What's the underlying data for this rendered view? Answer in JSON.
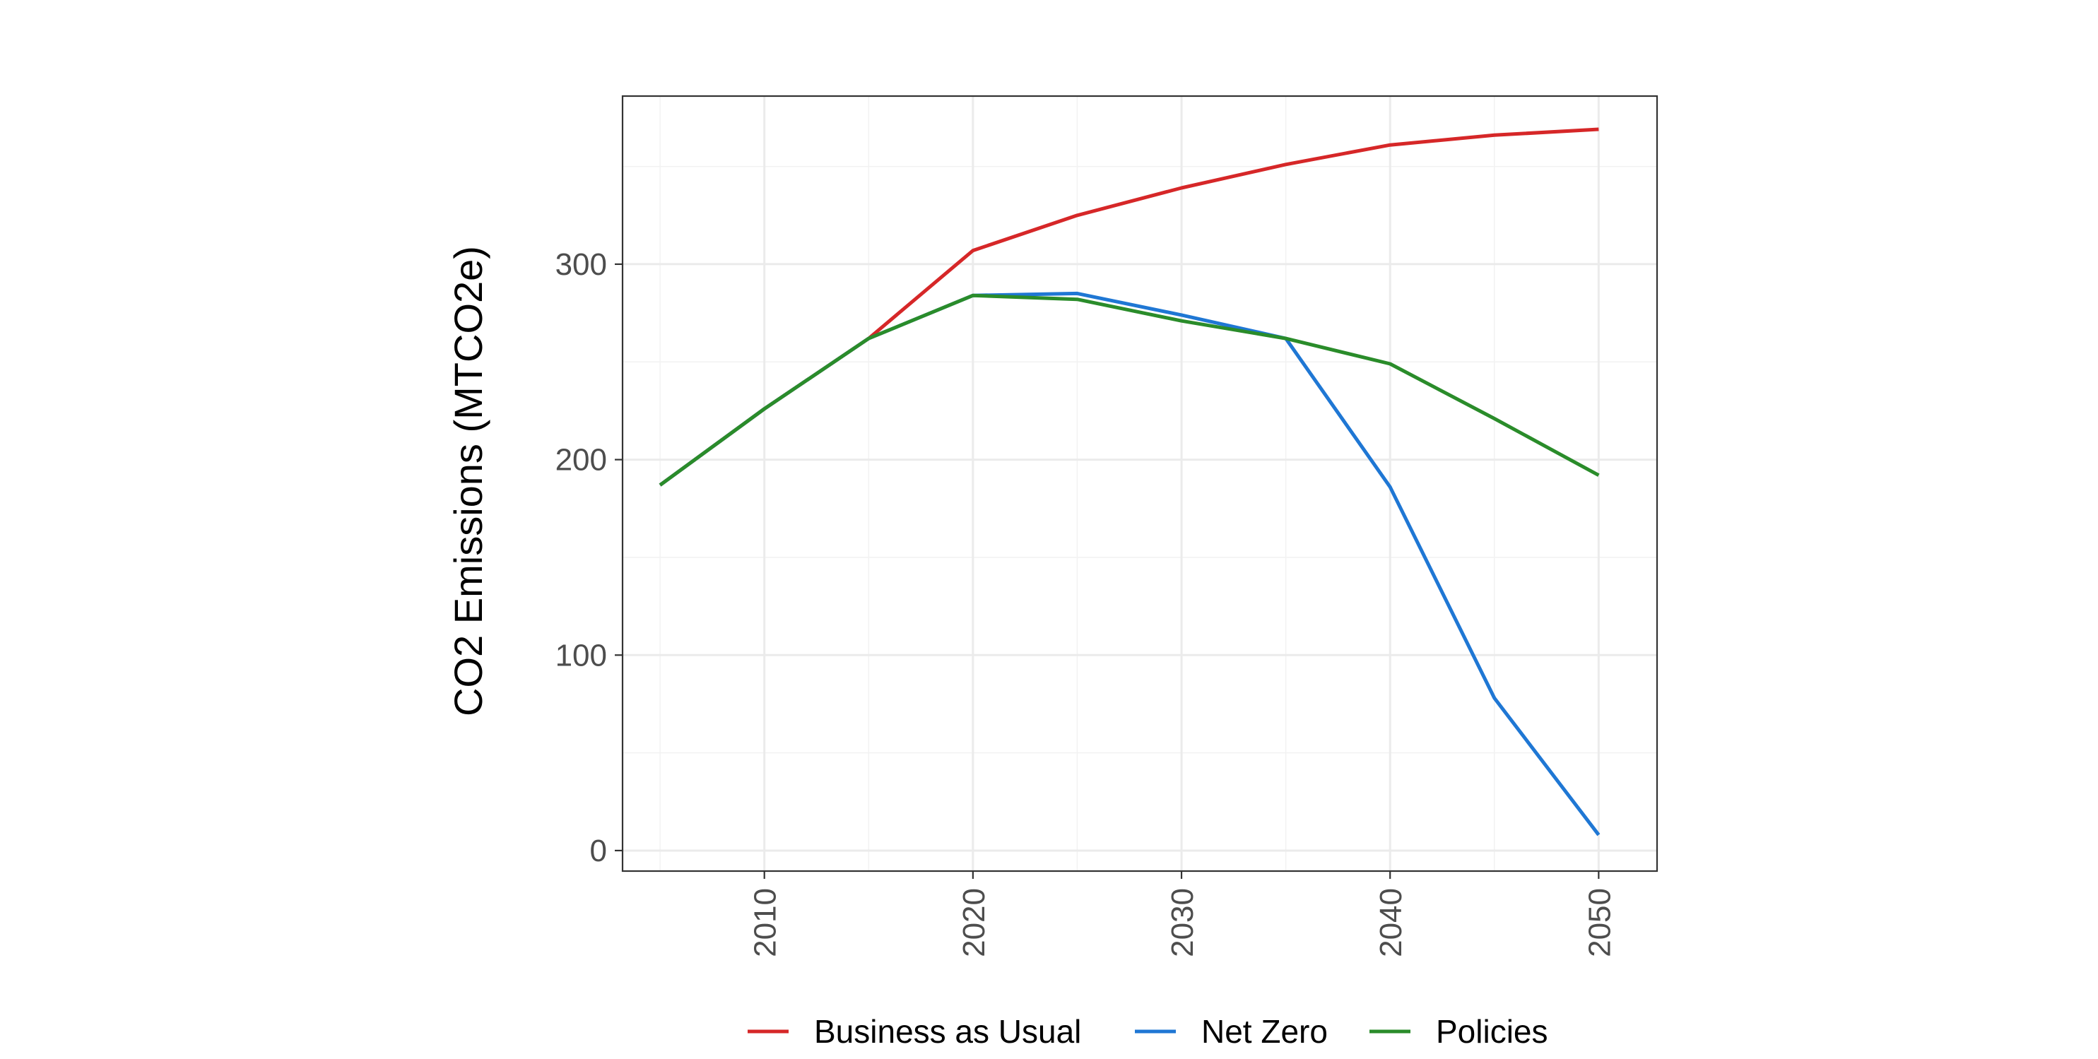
{
  "chart_data": {
    "type": "line",
    "title": "",
    "xlabel": "",
    "ylabel": "CO2 Emissions (MTCO2e)",
    "xlim": [
      2003.2,
      2052.8
    ],
    "ylim": [
      -10.5,
      386
    ],
    "x_ticks": [
      2010,
      2020,
      2030,
      2040,
      2050
    ],
    "y_ticks": [
      0,
      100,
      200,
      300
    ],
    "grid": true,
    "legend_position": "bottom",
    "x": [
      2005,
      2010,
      2015,
      2020,
      2025,
      2030,
      2035,
      2040,
      2045,
      2050
    ],
    "series": [
      {
        "name": "Business as Usual",
        "color": "#d62728",
        "values": [
          187,
          226,
          262,
          307,
          325,
          339,
          351,
          361,
          366,
          369
        ]
      },
      {
        "name": "Net Zero",
        "color": "#1f77d4",
        "values": [
          187,
          226,
          262,
          284,
          285,
          274,
          262,
          186,
          78,
          8
        ]
      },
      {
        "name": "Policies",
        "color": "#2a8c2a",
        "values": [
          187,
          226,
          262,
          284,
          282,
          271,
          262,
          249,
          221,
          192
        ]
      }
    ]
  }
}
